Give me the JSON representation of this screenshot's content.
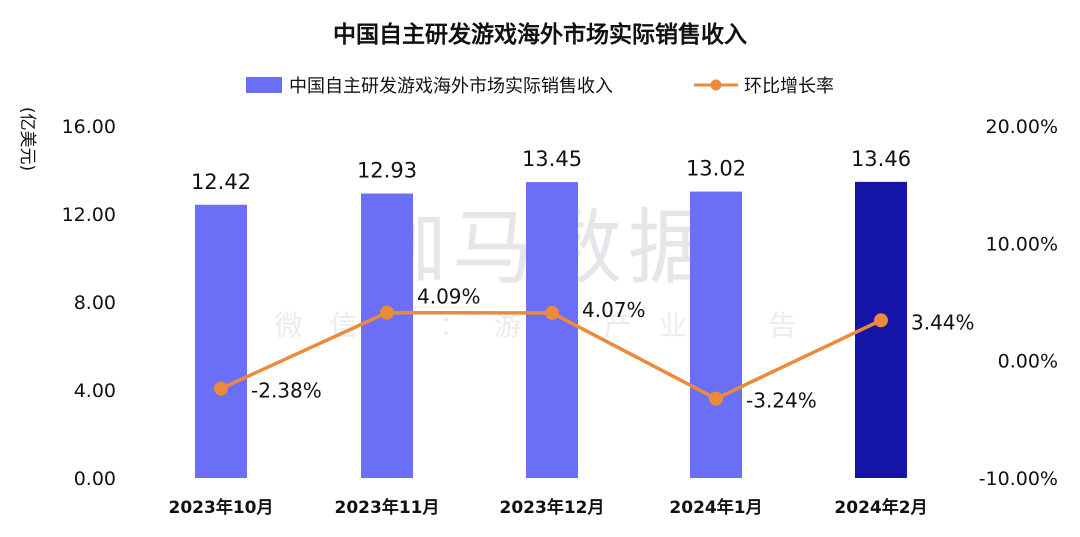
{
  "chart_data": {
    "type": "bar+line",
    "title": "中国自主研发游戏海外市场实际销售收入",
    "unit_label": "(亿美元)",
    "categories": [
      "2023年10月",
      "2023年11月",
      "2023年12月",
      "2024年1月",
      "2024年2月"
    ],
    "bar_series": {
      "name": "中国自主研发游戏海外市场实际销售收入",
      "values": [
        12.42,
        12.93,
        13.45,
        13.02,
        13.46
      ],
      "labels": [
        "12.42",
        "12.93",
        "13.45",
        "13.02",
        "13.46"
      ],
      "color": "#6b6ff7",
      "highlight_color": "#1414a6",
      "highlight_index": 4
    },
    "line_series": {
      "name": "环比增长率",
      "values": [
        -2.38,
        4.09,
        4.07,
        -3.24,
        3.44
      ],
      "labels": [
        "-2.38%",
        "4.09%",
        "4.07%",
        "-3.24%",
        "3.44%"
      ],
      "color": "#ec8a3c"
    },
    "y_left": {
      "min": 0,
      "max": 16,
      "ticks": [
        0,
        4,
        8,
        12,
        16
      ],
      "tick_labels": [
        "0.00",
        "4.00",
        "8.00",
        "12.00",
        "16.00"
      ]
    },
    "y_right": {
      "min": -10,
      "max": 20,
      "ticks": [
        -10,
        0,
        10,
        20
      ],
      "tick_labels": [
        "-10.00%",
        "0.00%",
        "10.00%",
        "20.00%"
      ]
    },
    "grid": false,
    "legend_position": "top-center"
  },
  "watermark": {
    "main": "伽马数据",
    "sub": "微 信 号 ： 游 戏 产 业 报 告"
  }
}
